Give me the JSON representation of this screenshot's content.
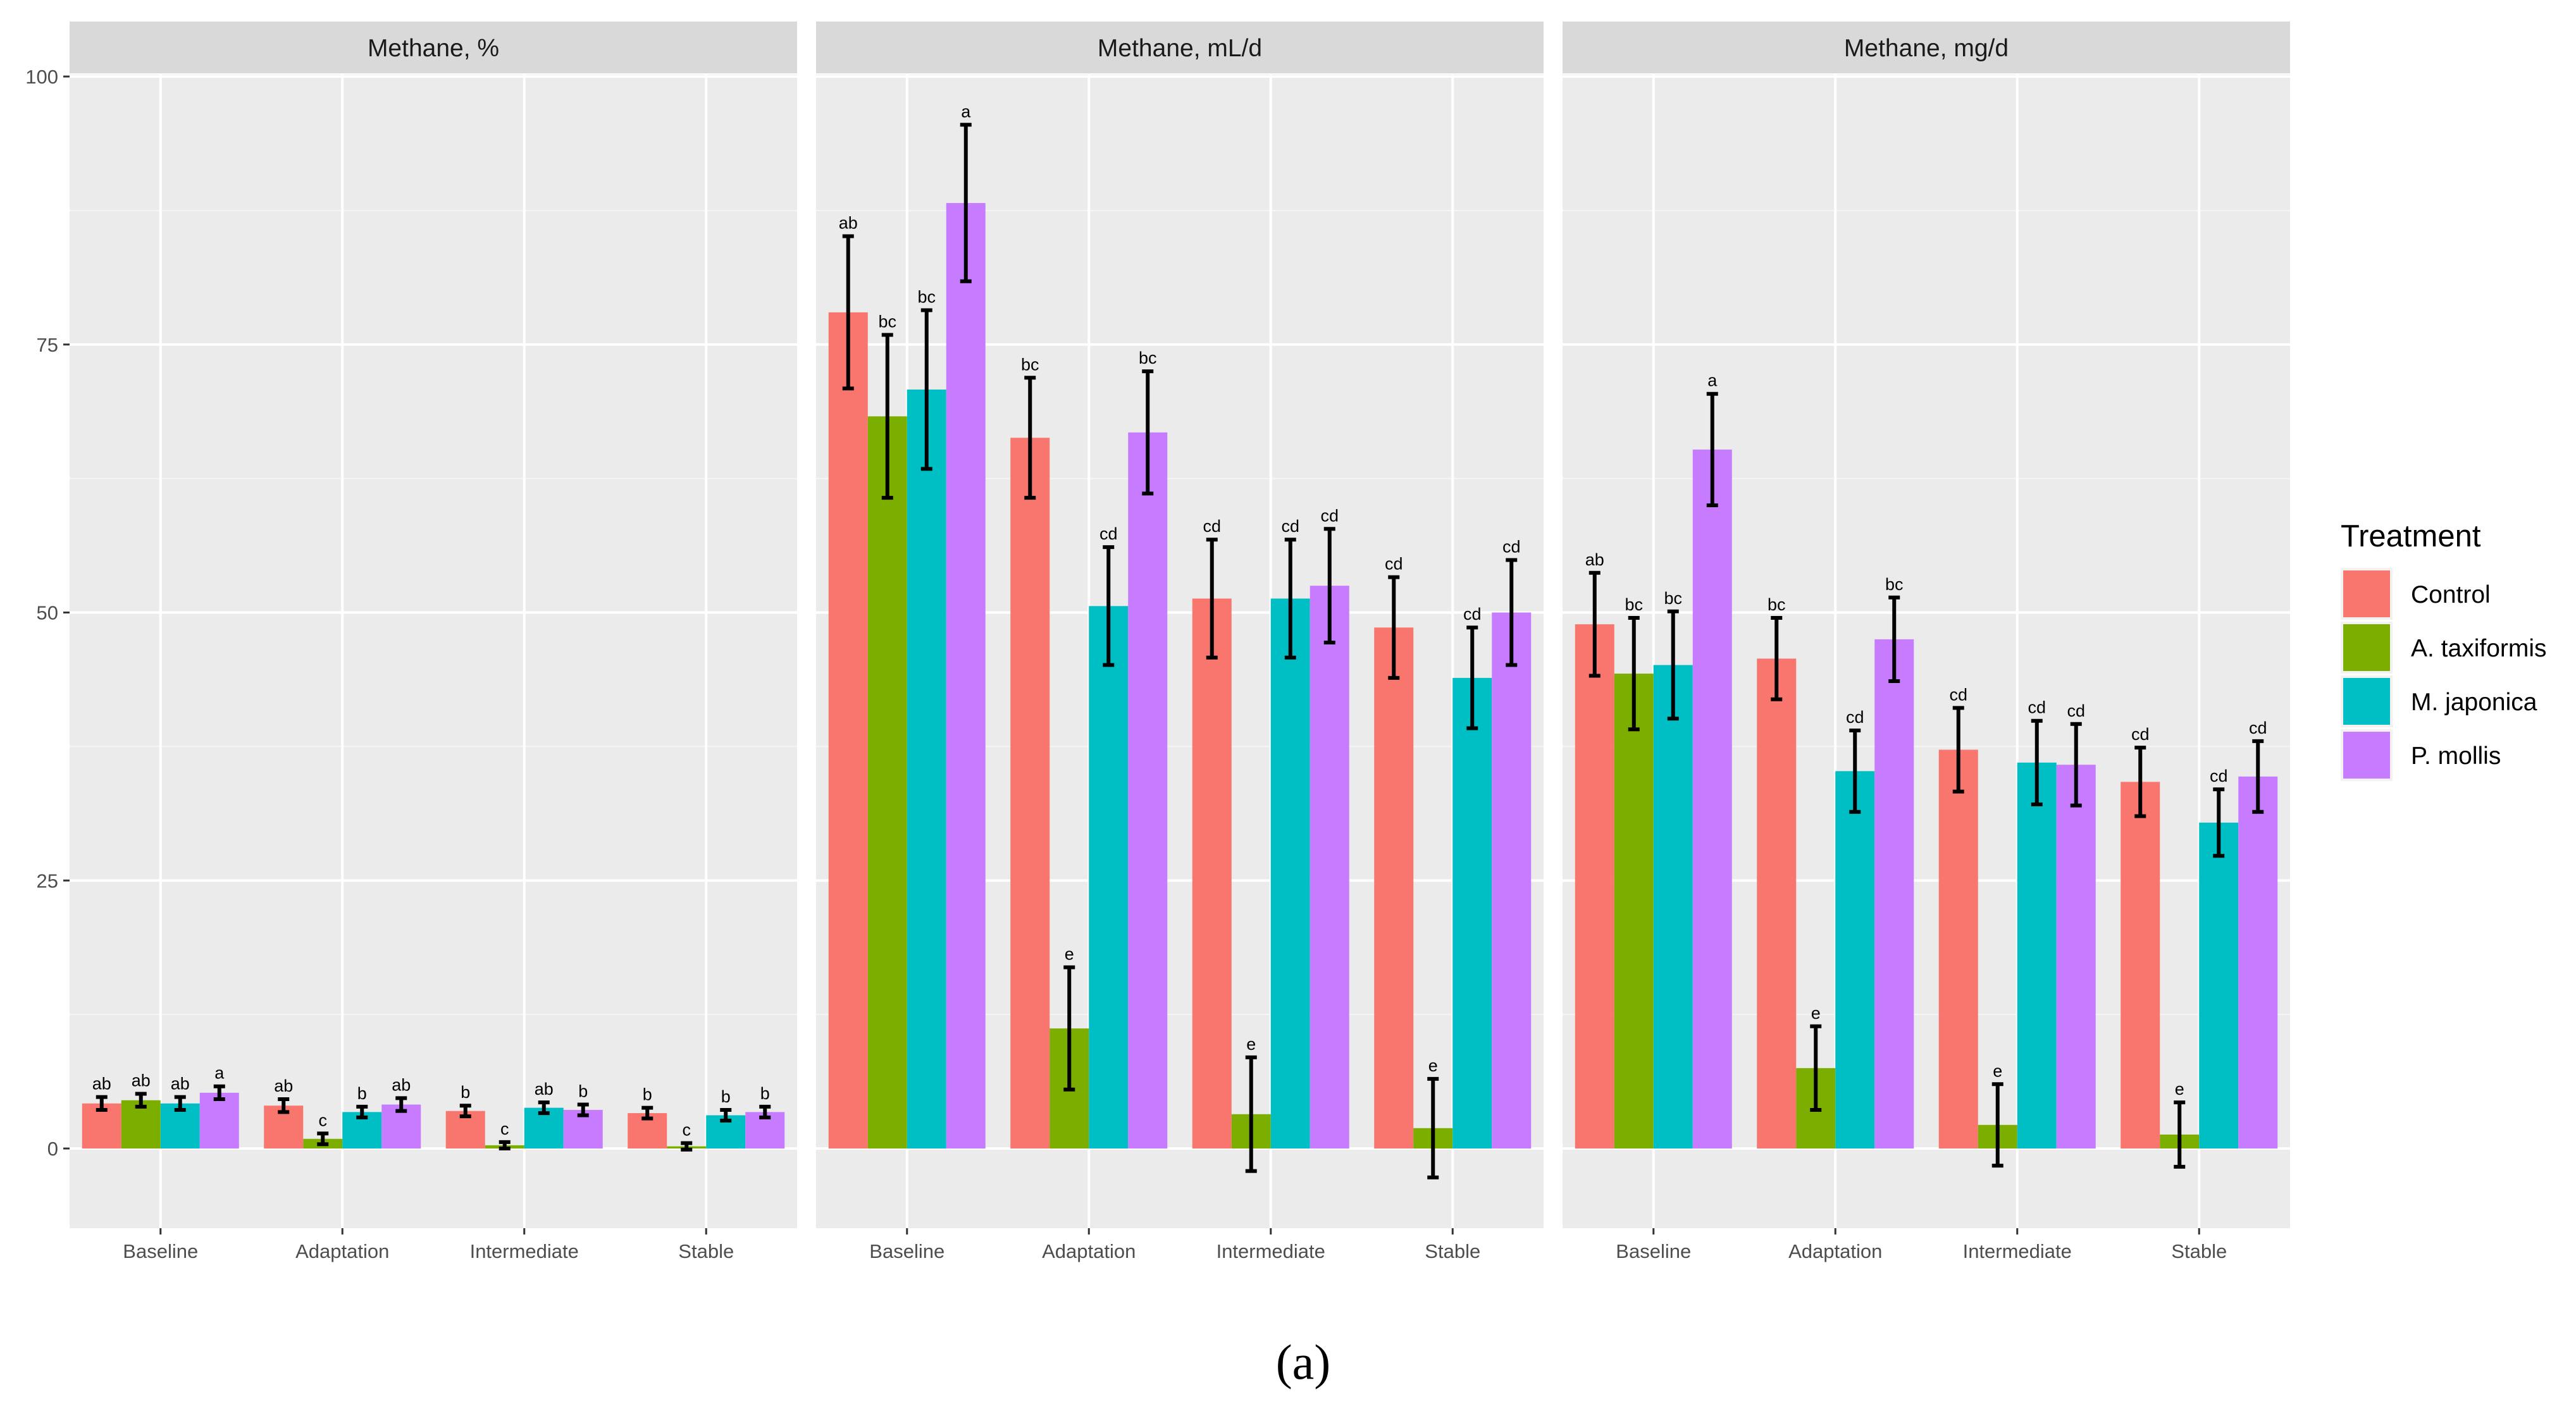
{
  "chart_data": {
    "type": "bar",
    "categories": [
      "Baseline",
      "Adaptation",
      "Intermediate",
      "Stable"
    ],
    "ylim": [
      -7.5,
      100
    ],
    "yticks": [
      0,
      25,
      50,
      75,
      100
    ],
    "grid": true,
    "legend": {
      "title": "Treatment",
      "placement": "right",
      "entries": [
        "Control",
        "A. taxiformis",
        "M. japonica",
        "P. mollis"
      ]
    },
    "colors": {
      "Control": "#F8766D",
      "A. taxiformis": "#7CAE00",
      "M. japonica": "#00BFC4",
      "P. mollis": "#C77CFF"
    },
    "panels": [
      {
        "title": "Methane, %",
        "series": [
          {
            "name": "Control",
            "values": [
              4.2,
              4.0,
              3.5,
              3.3
            ],
            "errors": [
              0.6,
              0.6,
              0.5,
              0.5
            ],
            "labels": [
              "ab",
              "ab",
              "b",
              "b"
            ]
          },
          {
            "name": "A. taxiformis",
            "values": [
              4.5,
              0.9,
              0.3,
              0.2
            ],
            "errors": [
              0.6,
              0.5,
              0.3,
              0.3
            ],
            "labels": [
              "ab",
              "c",
              "c",
              "c"
            ]
          },
          {
            "name": "M. japonica",
            "values": [
              4.2,
              3.4,
              3.8,
              3.1
            ],
            "errors": [
              0.6,
              0.5,
              0.5,
              0.5
            ],
            "labels": [
              "ab",
              "b",
              "ab",
              "b"
            ]
          },
          {
            "name": "P. mollis",
            "values": [
              5.2,
              4.1,
              3.6,
              3.4
            ],
            "errors": [
              0.6,
              0.6,
              0.5,
              0.5
            ],
            "labels": [
              "a",
              "ab",
              "b",
              "b"
            ]
          }
        ]
      },
      {
        "title": "Methane, mL/d",
        "series": [
          {
            "name": "Control",
            "values": [
              78.0,
              66.3,
              51.3,
              48.6
            ],
            "errors": [
              7.1,
              5.6,
              5.5,
              4.7
            ],
            "labels": [
              "ab",
              "bc",
              "cd",
              "cd"
            ]
          },
          {
            "name": "A. taxiformis",
            "values": [
              68.3,
              11.2,
              3.2,
              1.9
            ],
            "errors": [
              7.6,
              5.7,
              5.3,
              4.6
            ],
            "labels": [
              "bc",
              "e",
              "e",
              "e"
            ]
          },
          {
            "name": "M. japonica",
            "values": [
              70.8,
              50.6,
              51.3,
              43.9
            ],
            "errors": [
              7.4,
              5.5,
              5.5,
              4.7
            ],
            "labels": [
              "bc",
              "cd",
              "cd",
              "cd"
            ]
          },
          {
            "name": "P. mollis",
            "values": [
              88.2,
              66.8,
              52.5,
              50.0
            ],
            "errors": [
              7.3,
              5.7,
              5.3,
              4.9
            ],
            "labels": [
              "a",
              "bc",
              "cd",
              "cd"
            ]
          }
        ]
      },
      {
        "title": "Methane, mg/d",
        "series": [
          {
            "name": "Control",
            "values": [
              48.9,
              45.7,
              37.2,
              34.2
            ],
            "errors": [
              4.8,
              3.8,
              3.9,
              3.2
            ],
            "labels": [
              "ab",
              "bc",
              "cd",
              "cd"
            ]
          },
          {
            "name": "A. taxiformis",
            "values": [
              44.3,
              7.5,
              2.2,
              1.3
            ],
            "errors": [
              5.2,
              3.9,
              3.8,
              3.0
            ],
            "labels": [
              "bc",
              "e",
              "e",
              "e"
            ]
          },
          {
            "name": "M. japonica",
            "values": [
              45.1,
              35.2,
              36.0,
              30.4
            ],
            "errors": [
              5.0,
              3.8,
              3.9,
              3.1
            ],
            "labels": [
              "bc",
              "cd",
              "cd",
              "cd"
            ]
          },
          {
            "name": "P. mollis",
            "values": [
              65.2,
              47.5,
              35.8,
              34.7
            ],
            "errors": [
              5.2,
              3.9,
              3.8,
              3.3
            ],
            "labels": [
              "a",
              "bc",
              "cd",
              "cd"
            ]
          }
        ]
      }
    ]
  },
  "caption": "(a)"
}
